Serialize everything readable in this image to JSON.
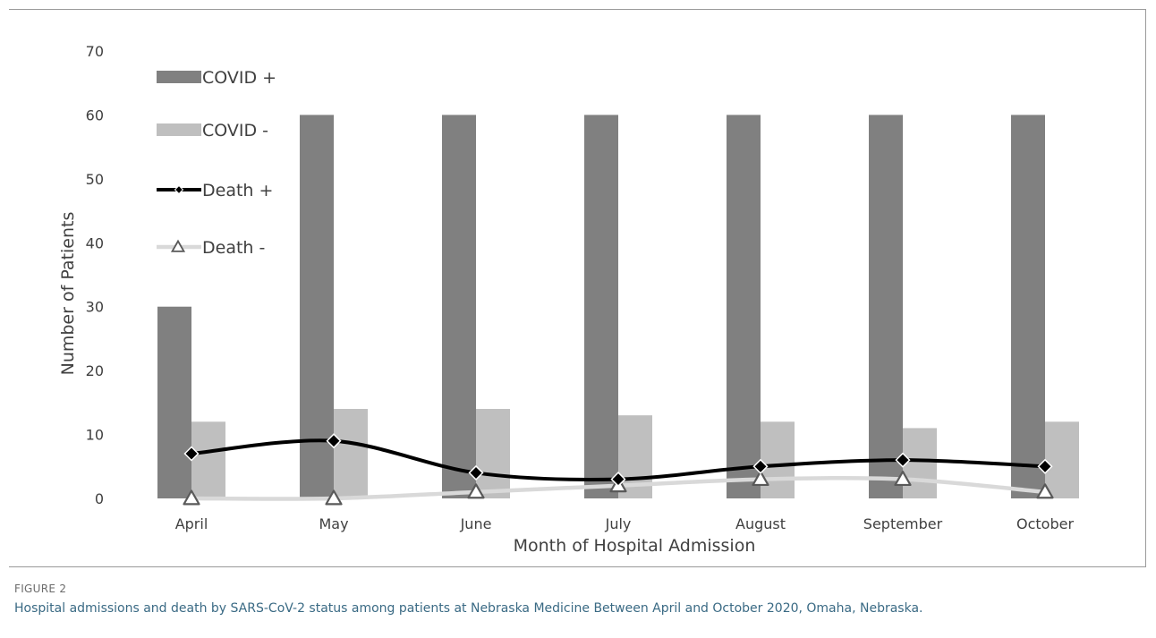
{
  "figure": {
    "label": "FIGURE 2",
    "caption": "Hospital admissions and death by SARS-CoV-2 status among patients at Nebraska Medicine Between April and October 2020, Omaha, Nebraska."
  },
  "colors": {
    "covid_pos": "#808080",
    "covid_neg": "#bfbfbf",
    "death_pos": "#000000",
    "death_neg": "#d9d9d9",
    "death_neg_marker": "#595959"
  },
  "chart_data": {
    "type": "bar",
    "title": "",
    "xlabel": "Month of Hospital Admission",
    "ylabel": "Number of Patients",
    "ylim": [
      0,
      70
    ],
    "yticks": [
      "0",
      "10",
      "20",
      "30",
      "40",
      "50",
      "60",
      "70"
    ],
    "categories": [
      "April",
      "May",
      "June",
      "July",
      "August",
      "September",
      "October"
    ],
    "grid": false,
    "legend_position": "top-left",
    "series": [
      {
        "name": "COVID +",
        "kind": "bar",
        "values": [
          30,
          60,
          60,
          60,
          60,
          60,
          60
        ]
      },
      {
        "name": "COVID -",
        "kind": "bar",
        "values": [
          12,
          14,
          14,
          13,
          12,
          11,
          12
        ]
      },
      {
        "name": "Death +",
        "kind": "line",
        "marker": "diamond",
        "values": [
          7,
          9,
          4,
          3,
          5,
          6,
          5
        ]
      },
      {
        "name": "Death -",
        "kind": "line",
        "marker": "triangle",
        "values": [
          0,
          0,
          1,
          2,
          3,
          3,
          1
        ]
      }
    ]
  }
}
